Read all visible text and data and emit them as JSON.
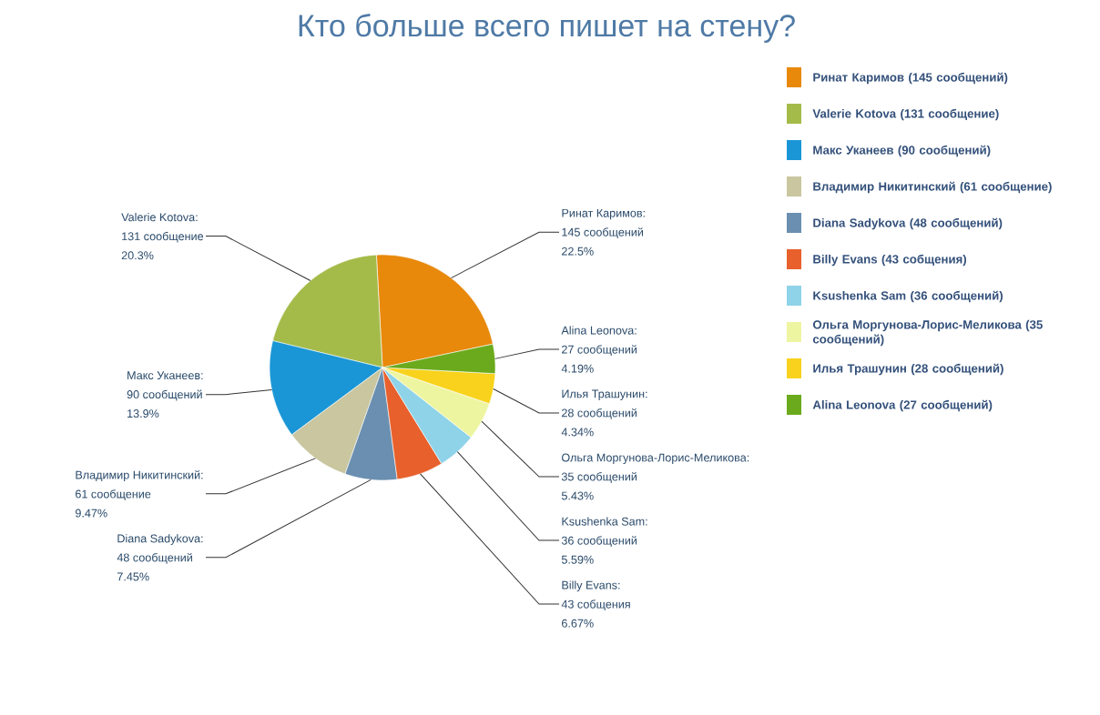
{
  "chart_data": {
    "type": "pie",
    "title": "Кто больше всего пишет на стену?",
    "categories": [
      "Ринат Каримов (145 сообщений)",
      "Valerie Kotova (131 сообщение)",
      "Макс Уканеев (90 сообщений)",
      "Владимир Никитинский (61 сообщение)",
      "Diana Sadykova (48 сообщений)",
      "Billy Evans (43 собщения)",
      "Ksushenka Sam (36 сообщений)",
      "Ольга Моргунова-Лорис-Меликова (35 сообщений)",
      "Илья Трашунин (28 сообщений)",
      "Alina Leonova (27 сообщений)"
    ],
    "values": [
      145,
      131,
      90,
      61,
      48,
      43,
      36,
      35,
      28,
      27
    ],
    "colors": [
      "#e8890c",
      "#a4bb4a",
      "#1a96d6",
      "#c9c6a0",
      "#6a8fb0",
      "#e8602c",
      "#8fd3e8",
      "#eef5a0",
      "#f8d21c",
      "#6aaa1c"
    ],
    "value_labels": [
      [
        "Ринат Каримов:",
        "145 сообщений",
        "22.5%"
      ],
      [
        "Valerie Kotova:",
        "131 сообщение",
        "20.3%"
      ],
      [
        "Макс Уканеев:",
        "90 сообщений",
        "13.9%"
      ],
      [
        "Владимир Никитинский:",
        "61 сообщение",
        "9.47%"
      ],
      [
        "Diana Sadykova:",
        "48 сообщений",
        "7.45%"
      ],
      [
        "Billy Evans:",
        "43 собщения",
        "6.67%"
      ],
      [
        "Ksushenka Sam:",
        "36 сообщений",
        "5.59%"
      ],
      [
        "Ольга Моргунова-Лорис-Меликова:",
        "35 сообщений",
        "5.43%"
      ],
      [
        "Илья Трашунин:",
        "28 сообщений",
        "4.34%"
      ],
      [
        "Alina Leonova:",
        "27 сообщений",
        "4.19%"
      ]
    ],
    "legend": "right"
  }
}
